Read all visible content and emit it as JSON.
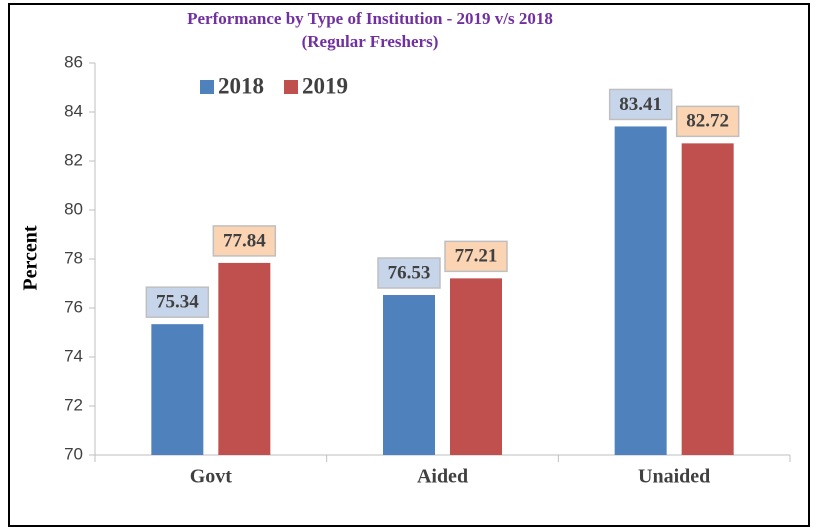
{
  "chart_data": {
    "type": "bar",
    "title": "Performance by Type of Institution - 2019 v/s 2018",
    "subtitle": "(Regular Freshers)",
    "ylabel": "Percent",
    "categories": [
      "Govt",
      "Aided",
      "Unaided"
    ],
    "series": [
      {
        "name": "2018",
        "color": "#4f81bd",
        "label_bg": "#c6d5ea",
        "values": [
          75.34,
          76.53,
          83.41
        ]
      },
      {
        "name": "2019",
        "color": "#c0504d",
        "label_bg": "#fbd4b4",
        "values": [
          77.84,
          77.21,
          82.72
        ]
      }
    ],
    "ylim": [
      70,
      86
    ],
    "yticks": [
      70,
      72,
      74,
      76,
      78,
      80,
      82,
      84,
      86
    ],
    "grid": false,
    "legend": "top-left"
  }
}
